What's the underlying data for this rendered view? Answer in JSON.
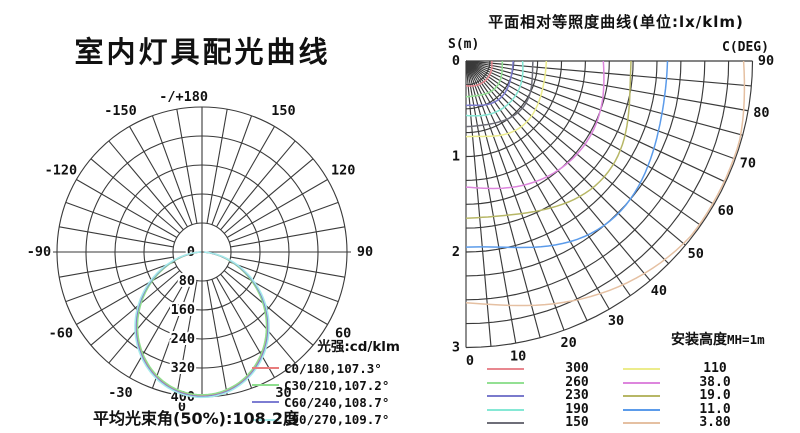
{
  "page": {
    "background": "#ffffff",
    "text_color": "#111111",
    "grid_color": "#3a3a3a"
  },
  "chart_data": [
    {
      "id": "luminous-intensity-polar",
      "type": "line",
      "title": "室内灯具配光曲线",
      "legend_title": "光强:cd/klm",
      "footer": "平均光束角(50%):108.2度",
      "unit": "cd/klm",
      "avg_beam_angle_50pct_deg": 108.2,
      "ring_values": [
        0,
        80,
        160,
        240,
        320,
        400
      ],
      "r_max": 400,
      "grid_spoke_step_deg": 10,
      "angle_ticks": [
        {
          "deg": 180,
          "label": "-/+180"
        },
        {
          "deg": 150,
          "label": "150"
        },
        {
          "deg": 120,
          "label": "120"
        },
        {
          "deg": 90,
          "label": "90"
        },
        {
          "deg": 60,
          "label": "60"
        },
        {
          "deg": 30,
          "label": "30"
        },
        {
          "deg": 0,
          "label": "0"
        },
        {
          "deg": -30,
          "label": "-30"
        },
        {
          "deg": -60,
          "label": "-60"
        },
        {
          "deg": -90,
          "label": "-90"
        },
        {
          "deg": -120,
          "label": "-120"
        },
        {
          "deg": -150,
          "label": "-150"
        }
      ],
      "series": [
        {
          "label": "C0/180,107.3°",
          "color": "#e87c7c",
          "peak_cd_klm": 397,
          "beam_angle_deg": 107.3
        },
        {
          "label": "C30/210,107.2°",
          "color": "#8ede8e",
          "peak_cd_klm": 394,
          "beam_angle_deg": 107.2
        },
        {
          "label": "C60/240,108.7°",
          "color": "#7d7dd2",
          "peak_cd_klm": 399,
          "beam_angle_deg": 108.7
        },
        {
          "label": "C90/270,109.7°",
          "color": "#a6ecea",
          "peak_cd_klm": 401,
          "beam_angle_deg": 109.7
        }
      ]
    },
    {
      "id": "isolux-plane",
      "type": "line",
      "title": "平面相对等照度曲线(单位:lx/klm)",
      "unit": "lx/klm",
      "s_axis_label": "S(m)",
      "c_axis_label": "C(DEG)",
      "mounting_height_label": "安装高度",
      "mounting_height_value": "MH=1m",
      "s_ticks": [
        0,
        1,
        2,
        3
      ],
      "s_max_m": 3,
      "c_ticks": [
        0,
        10,
        20,
        30,
        40,
        50,
        60,
        70,
        80,
        90
      ],
      "grid_arc_step_m": 0.25,
      "grid_spoke_step_deg": 5,
      "curves": [
        {
          "label": "300",
          "value_lx_klm": 300,
          "color": "#e8878f",
          "r0_m": 0.26,
          "bulge90": 0.04,
          "bulge45": 0.1
        },
        {
          "label": "260",
          "value_lx_klm": 260,
          "color": "#93e093",
          "r0_m": 0.37,
          "bulge90": 0.04,
          "bulge45": 0.1
        },
        {
          "label": "230",
          "value_lx_klm": 230,
          "color": "#7a7acc",
          "r0_m": 0.47,
          "bulge90": 0.04,
          "bulge45": 0.1
        },
        {
          "label": "190",
          "value_lx_klm": 190,
          "color": "#85e8d5",
          "r0_m": 0.57,
          "bulge90": 0.04,
          "bulge45": 0.1
        },
        {
          "label": "150",
          "value_lx_klm": 150,
          "color": "#6e6e78",
          "r0_m": 0.68,
          "bulge90": 0.04,
          "bulge45": 0.1
        },
        {
          "label": "110",
          "value_lx_klm": 110,
          "color": "#ecec8c",
          "r0_m": 0.8,
          "bulge90": 0.04,
          "bulge45": 0.1
        },
        {
          "label": "38.0",
          "value_lx_klm": 38.0,
          "color": "#dd86dd",
          "r0_m": 1.32,
          "bulge90": 0.09,
          "bulge45": 0.11
        },
        {
          "label": "19.0",
          "value_lx_klm": 19.0,
          "color": "#b7b766",
          "r0_m": 1.63,
          "bulge90": 0.07,
          "bulge45": 0.11
        },
        {
          "label": "11.0",
          "value_lx_klm": 11.0,
          "color": "#5b9bea",
          "r0_m": 1.97,
          "bulge90": 0.06,
          "bulge45": 0.11
        },
        {
          "label": "3.80",
          "value_lx_klm": 3.8,
          "color": "#e5c0a2",
          "r0_m": 2.53,
          "bulge90": 0.15,
          "bulge45": 0.1
        }
      ]
    }
  ]
}
